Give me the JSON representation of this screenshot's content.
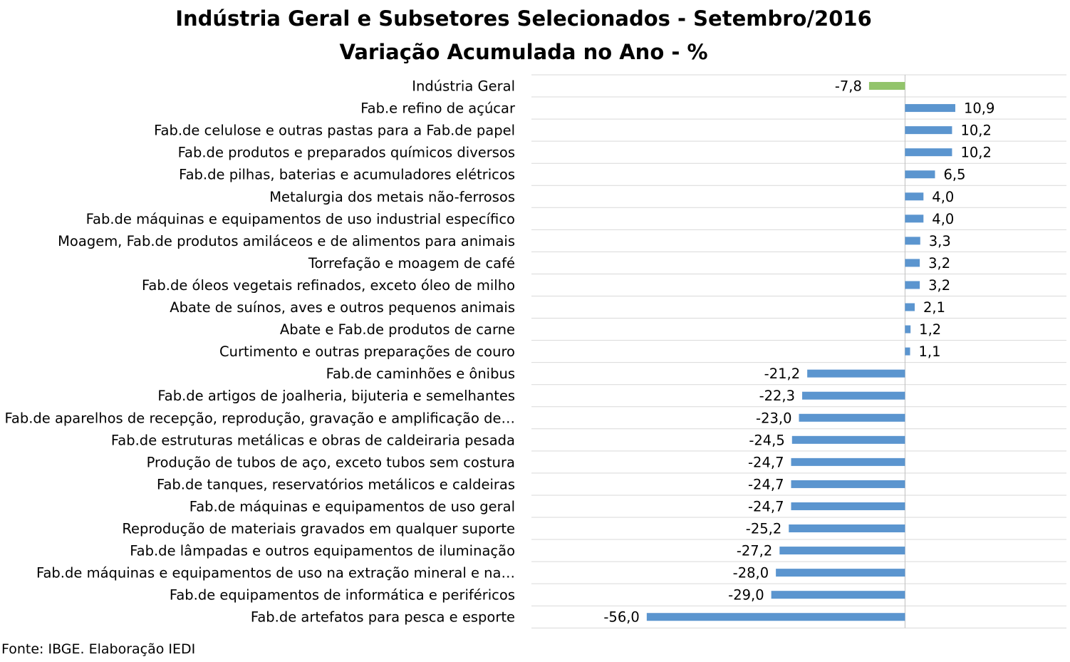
{
  "chart_data": {
    "type": "bar",
    "orientation": "horizontal",
    "title": "Indústria Geral e Subsetores Selecionados - Setembro/2016",
    "subtitle": "Variação Acumulada no Ano - %",
    "categories": [
      "Indústria Geral",
      "Fab.e refino de açúcar",
      "Fab.de celulose e outras pastas para a Fab.de papel",
      "Fab.de produtos e preparados químicos diversos",
      "Fab.de pilhas, baterias e acumuladores elétricos",
      "Metalurgia dos metais não-ferrosos",
      "Fab.de máquinas e equipamentos de uso industrial específico",
      "Moagem, Fab.de produtos amiláceos e de alimentos para animais",
      "Torrefação e moagem de café",
      "Fab.de óleos vegetais refinados, exceto óleo de milho",
      "Abate de suínos, aves e outros pequenos animais",
      "Abate e Fab.de produtos de carne",
      "Curtimento e outras preparações de couro",
      "Fab.de caminhões e ônibus",
      "Fab.de artigos de joalheria, bijuteria e semelhantes",
      "Fab.de aparelhos de recepção, reprodução, gravação e amplificação de…",
      "Fab.de estruturas metálicas e obras de caldeiraria pesada",
      "Produção de tubos de aço, exceto tubos sem costura",
      "Fab.de tanques, reservatórios metálicos e caldeiras",
      "Fab.de máquinas e equipamentos de uso geral",
      "Reprodução de materiais gravados em qualquer suporte",
      "Fab.de lâmpadas e outros equipamentos de iluminação",
      "Fab.de máquinas e equipamentos de uso na extração mineral e na…",
      "Fab.de equipamentos de informática e periféricos",
      "Fab.de artefatos para pesca e esporte"
    ],
    "values": [
      -7.8,
      10.9,
      10.2,
      10.2,
      6.5,
      4.0,
      4.0,
      3.3,
      3.2,
      3.2,
      2.1,
      1.2,
      1.1,
      -21.2,
      -22.3,
      -23.0,
      -24.5,
      -24.7,
      -24.7,
      -24.7,
      -25.2,
      -27.2,
      -28.0,
      -29.0,
      -56.0
    ],
    "data_labels": [
      "-7,8",
      "10,9",
      "10,2",
      "10,2",
      "6,5",
      "4,0",
      "4,0",
      "3,3",
      "3,2",
      "3,2",
      "2,1",
      "1,2",
      "1,1",
      "-21,2",
      "-22,3",
      "-23,0",
      "-24,5",
      "-24,7",
      "-24,7",
      "-24,7",
      "-25,2",
      "-27,2",
      "-28,0",
      "-29,0",
      "-56,0"
    ],
    "highlight_index": 0,
    "colors": {
      "highlight": "#92C46B",
      "bars": "#5B95CF",
      "gridlines": "#D9D9D9",
      "axis": "#BFBFBF"
    },
    "xlim": [
      -81,
      35
    ],
    "grid": true,
    "legend": "none"
  },
  "source": "Fonte: IBGE. Elaboração IEDI"
}
